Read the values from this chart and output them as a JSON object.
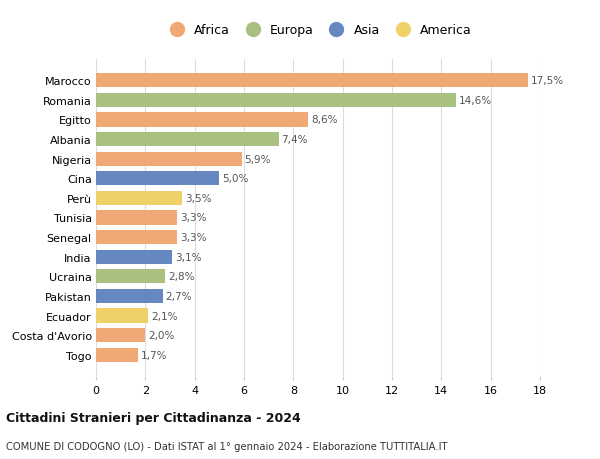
{
  "categories": [
    "Marocco",
    "Romania",
    "Egitto",
    "Albania",
    "Nigeria",
    "Cina",
    "Perù",
    "Tunisia",
    "Senegal",
    "India",
    "Ucraina",
    "Pakistan",
    "Ecuador",
    "Costa d'Avorio",
    "Togo"
  ],
  "values": [
    17.5,
    14.6,
    8.6,
    7.4,
    5.9,
    5.0,
    3.5,
    3.3,
    3.3,
    3.1,
    2.8,
    2.7,
    2.1,
    2.0,
    1.7
  ],
  "labels": [
    "17,5%",
    "14,6%",
    "8,6%",
    "7,4%",
    "5,9%",
    "5,0%",
    "3,5%",
    "3,3%",
    "3,3%",
    "3,1%",
    "2,8%",
    "2,7%",
    "2,1%",
    "2,0%",
    "1,7%"
  ],
  "continents": [
    "Africa",
    "Europa",
    "Africa",
    "Europa",
    "Africa",
    "Asia",
    "America",
    "Africa",
    "Africa",
    "Asia",
    "Europa",
    "Asia",
    "America",
    "Africa",
    "Africa"
  ],
  "colors": {
    "Africa": "#F0A875",
    "Europa": "#A8C080",
    "Asia": "#6688C0",
    "America": "#F0D068"
  },
  "title1": "Cittadini Stranieri per Cittadinanza - 2024",
  "title2": "COMUNE DI CODOGNO (LO) - Dati ISTAT al 1° gennaio 2024 - Elaborazione TUTTITALIA.IT",
  "xlim": [
    0,
    18
  ],
  "xticks": [
    0,
    2,
    4,
    6,
    8,
    10,
    12,
    14,
    16,
    18
  ],
  "background_color": "#ffffff",
  "grid_color": "#dddddd"
}
